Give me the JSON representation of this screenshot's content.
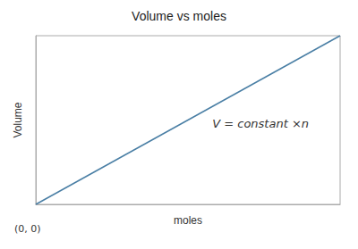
{
  "chart_data": {
    "type": "line",
    "title": "Volume vs moles",
    "xlabel": "moles",
    "ylabel": "Volume",
    "x": [
      0,
      1
    ],
    "values": [
      0,
      1
    ],
    "color": "#4a7fa5",
    "xlim": [
      0,
      1
    ],
    "ylim": [
      0,
      1
    ],
    "xticks": [],
    "yticks": [],
    "tick_labels": false,
    "grid": false,
    "annotations": [
      "(0, 0)",
      "V = constant ×n"
    ]
  }
}
